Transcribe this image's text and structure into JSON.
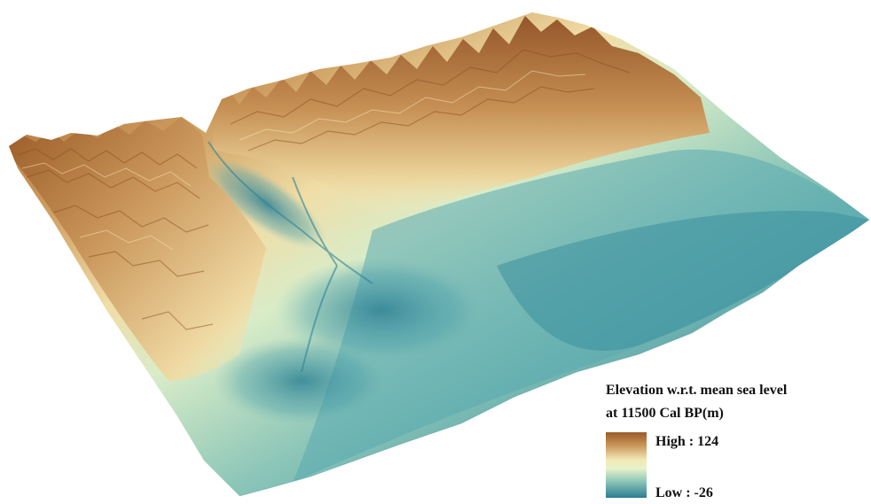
{
  "legend": {
    "title_line1": "Elevation w.r.t. mean sea level",
    "title_line2": "at 11500 Cal BP(m)",
    "high_label": "High : 124",
    "low_label": "Low : -26",
    "high_value": 124,
    "low_value": -26,
    "units": "m"
  },
  "colors": {
    "high": "#9a5b27",
    "upper": "#cc9a5c",
    "mid_upper": "#f0dda6",
    "mid": "#f4f1c4",
    "mid_lower": "#a9d5c1",
    "lower": "#4c9fab",
    "low": "#2a7d91"
  }
}
